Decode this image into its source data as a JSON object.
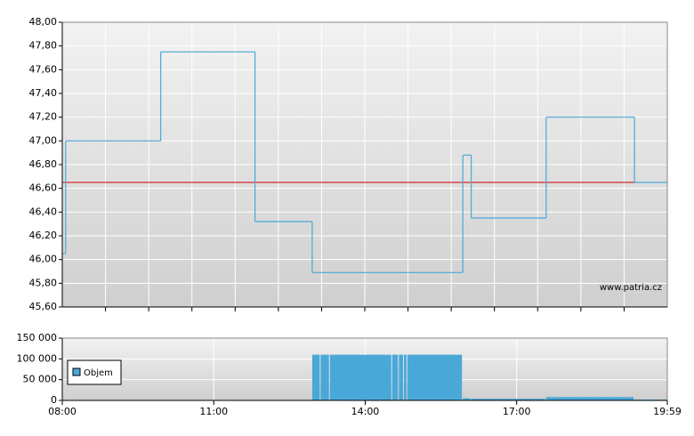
{
  "chart_data": [
    {
      "type": "line",
      "series": [
        {
          "color": "#4aa8d8",
          "x": [
            "08:00",
            "08:04",
            "09:57",
            "11:49",
            "12:57",
            "15:56",
            "16:06",
            "17:35",
            "19:20",
            "19:59"
          ],
          "values": [
            46.05,
            47.0,
            47.75,
            46.32,
            45.89,
            46.88,
            46.35,
            47.2,
            46.65,
            46.65
          ]
        }
      ],
      "reference_line": {
        "value": 46.65,
        "color": "#cc0000"
      },
      "xlim": [
        "08:00",
        "19:59"
      ],
      "ylim": [
        45.6,
        48.0
      ],
      "yticks": [
        {
          "value": 45.6,
          "label": "45,60"
        },
        {
          "value": 45.8,
          "label": "45,80"
        },
        {
          "value": 46.0,
          "label": "46,00"
        },
        {
          "value": 46.2,
          "label": "46,20"
        },
        {
          "value": 46.4,
          "label": "46,40"
        },
        {
          "value": 46.6,
          "label": "46,60"
        },
        {
          "value": 46.8,
          "label": "46,80"
        },
        {
          "value": 47.0,
          "label": "47,00"
        },
        {
          "value": 47.2,
          "label": "47,20"
        },
        {
          "value": 47.4,
          "label": "47,40"
        },
        {
          "value": 47.6,
          "label": "47,60"
        },
        {
          "value": 47.8,
          "label": "47,80"
        },
        {
          "value": 48.0,
          "label": "48,00"
        }
      ],
      "grid": true,
      "annotation": "www.patria.cz"
    },
    {
      "type": "bar",
      "series": [
        {
          "name": "Objem",
          "color": "#4aa8d8",
          "x": [
            "12:57",
            "13:07",
            "13:18",
            "14:32",
            "14:40",
            "14:46",
            "14:50",
            "15:56",
            "16:06",
            "17:35",
            "19:20"
          ],
          "values": [
            110000,
            110000,
            110000,
            110000,
            110000,
            110000,
            110000,
            5000,
            4000,
            8000,
            2000
          ]
        }
      ],
      "xlim": [
        "08:00",
        "19:59"
      ],
      "xticks": [
        "08:00",
        "11:00",
        "14:00",
        "17:00",
        "19:59"
      ],
      "ylim": [
        0,
        150000
      ],
      "yticks": [
        {
          "value": 0,
          "label": "0"
        },
        {
          "value": 50000,
          "label": "50 000"
        },
        {
          "value": 100000,
          "label": "100 000"
        },
        {
          "value": 150000,
          "label": "150 000"
        }
      ],
      "grid": true,
      "legend": "upper left"
    }
  ]
}
